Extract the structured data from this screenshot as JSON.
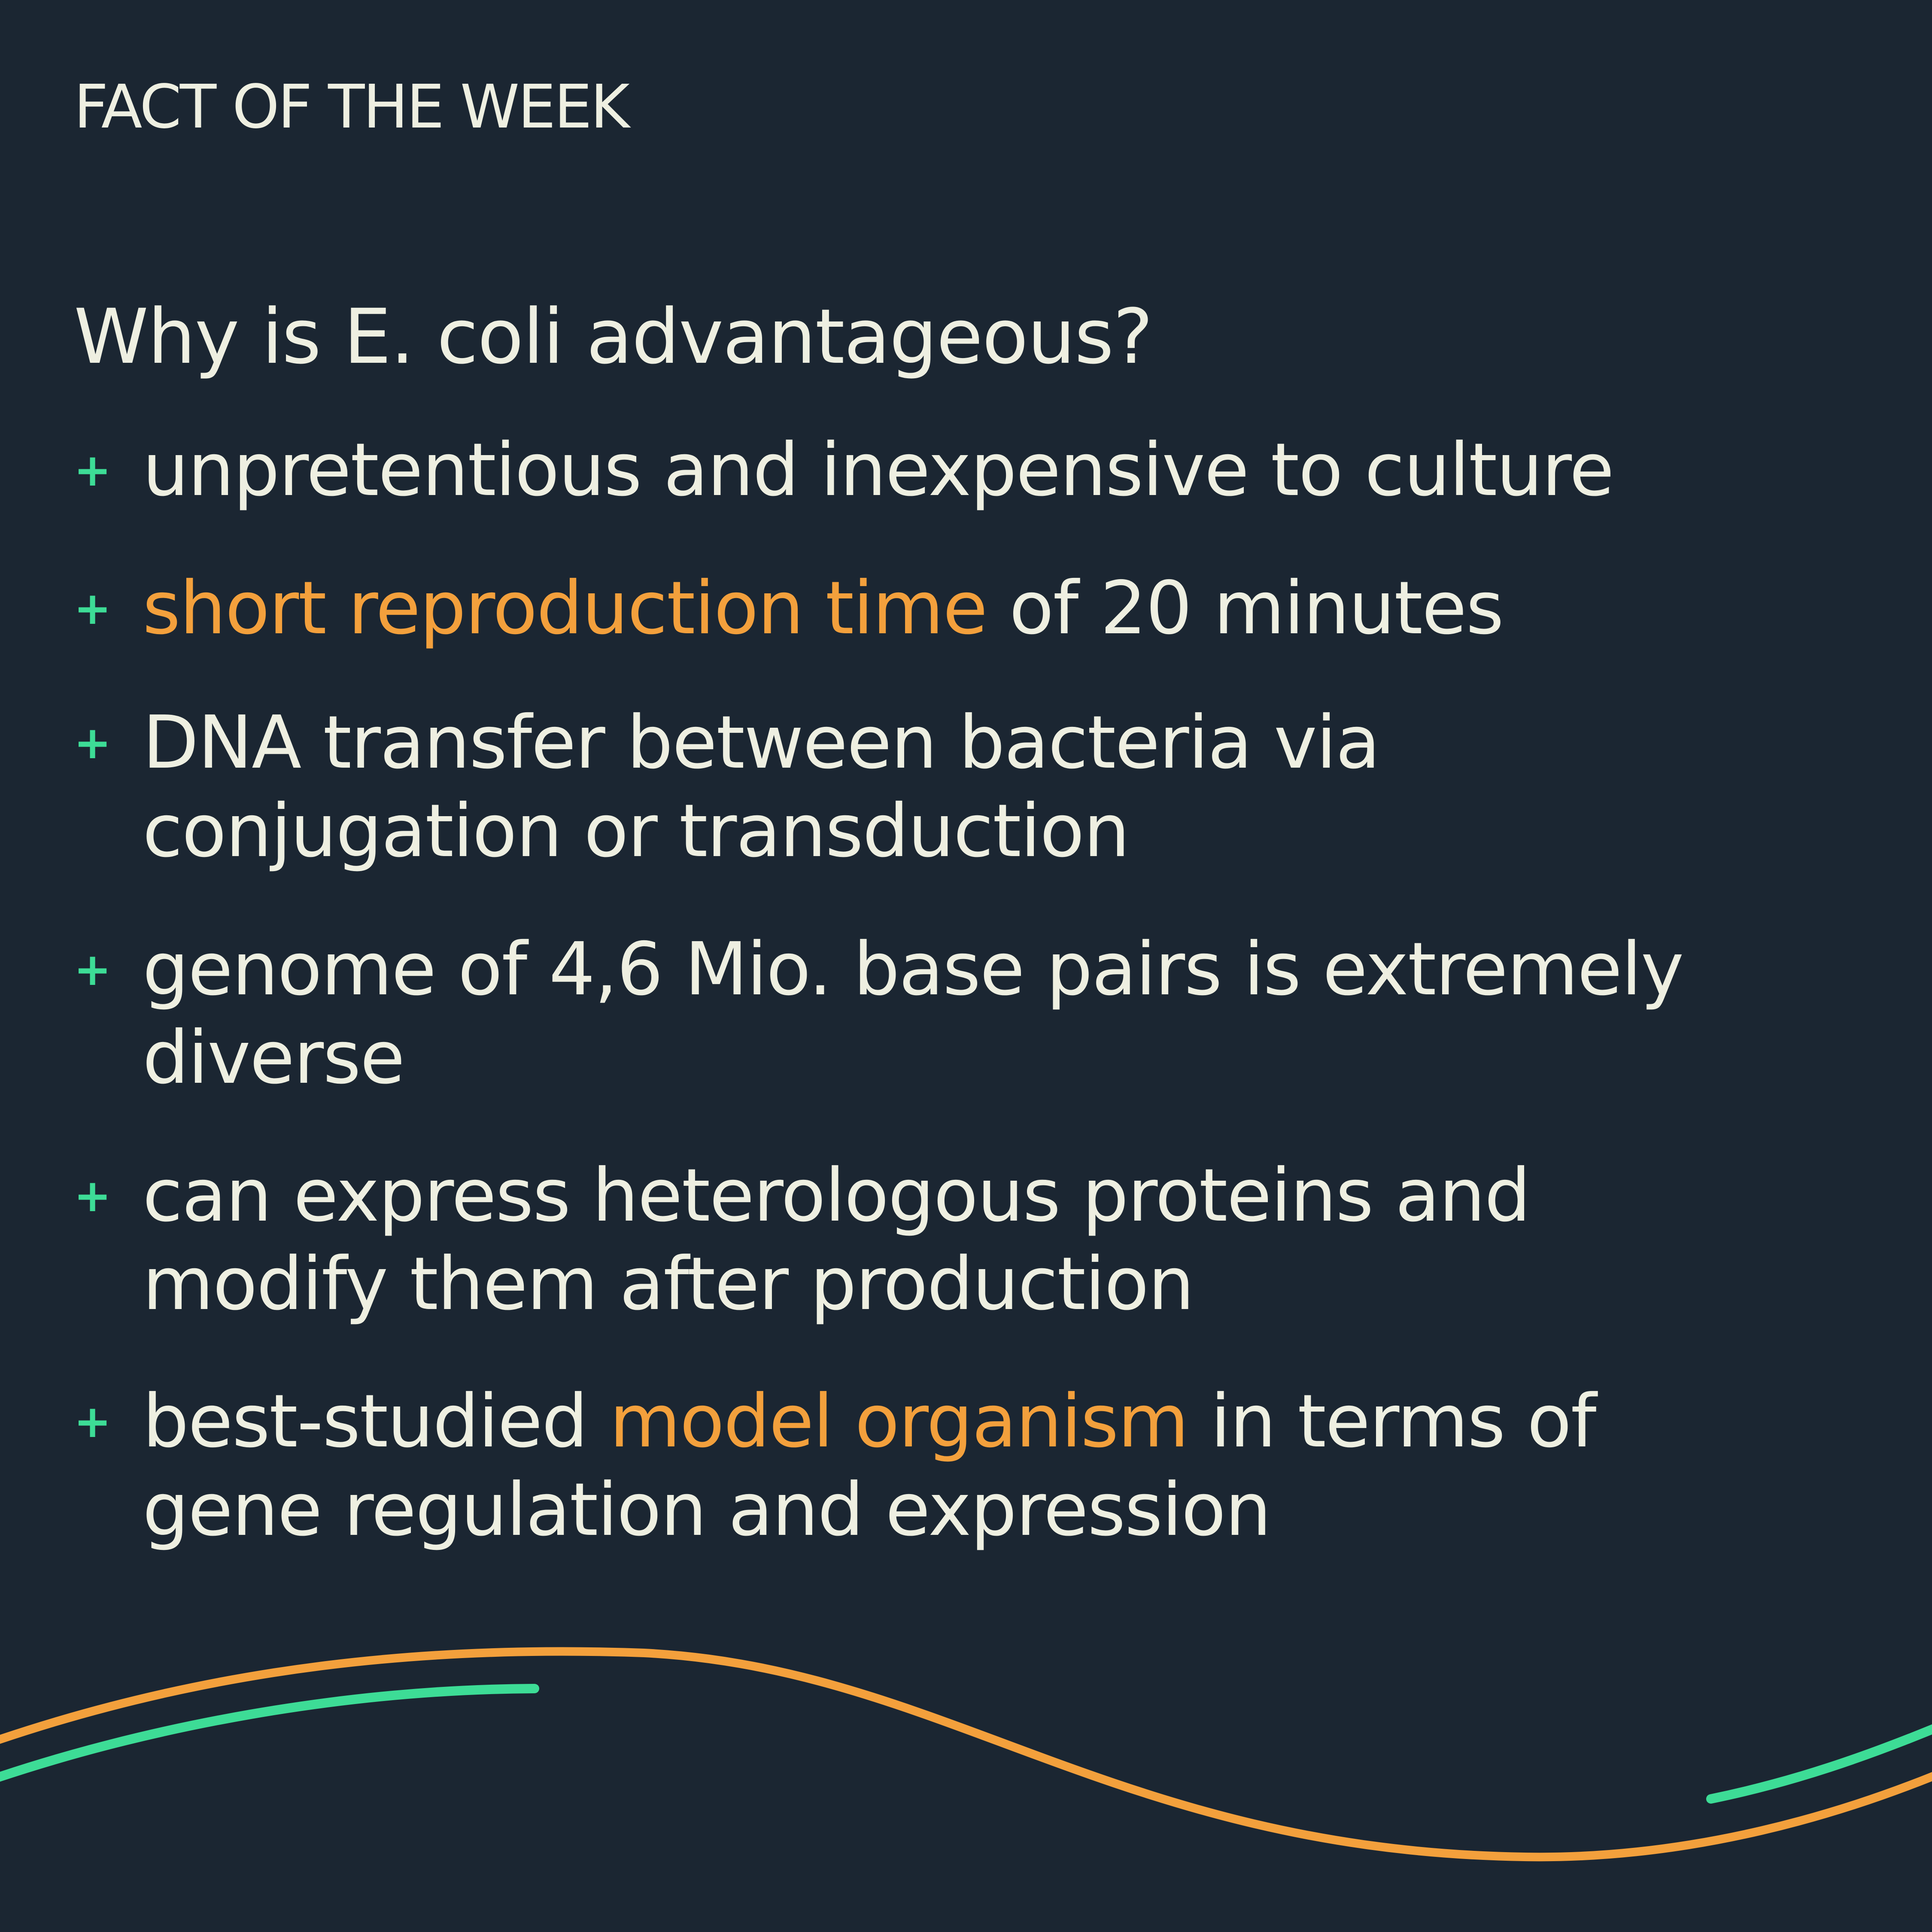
{
  "eyebrow": "FACT OF THE WEEK",
  "question": "Why is E. coli advantageous?",
  "items": [
    {
      "icon": "plus-icon",
      "text": "unpretentious and inexpensive to culture"
    },
    {
      "icon": "plus-icon",
      "highlight": "short reproduction time",
      "after": " of 20 minutes"
    },
    {
      "icon": "plus-icon",
      "line1": "DNA transfer between bacteria via",
      "line2": "conjugation or transduction"
    },
    {
      "icon": "plus-icon",
      "line1": "genome of 4,6 Mio. base pairs is extremely",
      "line2": "diverse"
    },
    {
      "icon": "plus-icon",
      "line1": "can express heterologous proteins and",
      "line2": "modify them after production"
    },
    {
      "icon": "plus-icon",
      "before": "best-studied ",
      "highlight": "model organism",
      "after": " in terms of",
      "line2": "gene regulation and expression"
    }
  ],
  "colors": {
    "background": "#1b2632",
    "text": "#eeefe1",
    "accent_green": "#3ddc96",
    "accent_orange": "#f3a03c"
  }
}
